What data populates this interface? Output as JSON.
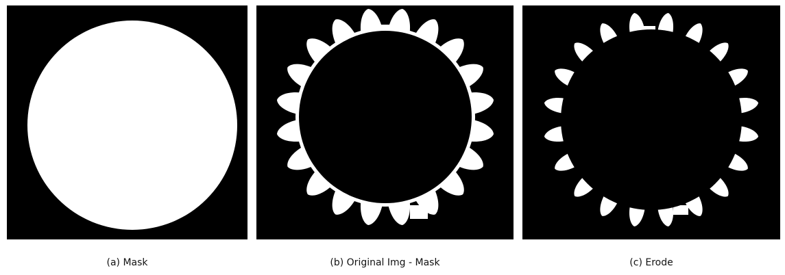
{
  "figure": {
    "panels": [
      {
        "id": "a",
        "caption": "(a) Mask"
      },
      {
        "id": "b",
        "caption": "(b) Original Img - Mask"
      },
      {
        "id": "c",
        "caption": "(c) Erode"
      }
    ],
    "gear_teeth": 20,
    "colors": {
      "background": "#000000",
      "foreground": "#ffffff"
    }
  }
}
